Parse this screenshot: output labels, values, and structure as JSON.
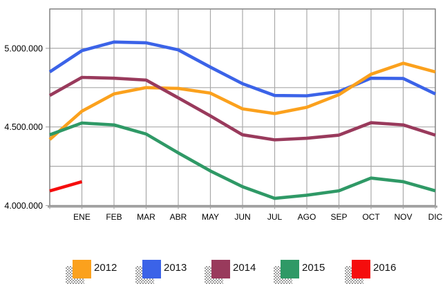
{
  "chart_data": {
    "type": "line",
    "title": "",
    "xlabel": "",
    "ylabel": "",
    "categories": [
      "",
      "ENE",
      "FEB",
      "MAR",
      "ABR",
      "MAY",
      "JUN",
      "JUL",
      "AGO",
      "SEP",
      "OCT",
      "NOV",
      "DIC"
    ],
    "layout_hints": {
      "grid": true,
      "legend_position": "bottom",
      "first_point_on_y_axis_unlabeled": true,
      "x_labels_on_gridlines": true
    },
    "y_axis": {
      "min": 4000000,
      "max": 5250000,
      "grid_interval": 250000,
      "ticks": [
        {
          "value": 4000000,
          "label": "4.000.000"
        },
        {
          "value": 4500000,
          "label": "4.500.000"
        },
        {
          "value": 5000000,
          "label": "5.000.000"
        }
      ]
    },
    "series": [
      {
        "name": "2012",
        "color": "#FBA11D",
        "values": [
          4420000,
          4600000,
          4710000,
          4750000,
          4745000,
          4715000,
          4615000,
          4585000,
          4625000,
          4705000,
          4835000,
          4905000,
          4850000
        ]
      },
      {
        "name": "2013",
        "color": "#3B63E8",
        "values": [
          4850000,
          4985000,
          5040000,
          5035000,
          4990000,
          4880000,
          4775000,
          4700000,
          4698000,
          4725000,
          4810000,
          4808000,
          4710000
        ]
      },
      {
        "name": "2014",
        "color": "#993A5C",
        "values": [
          4700000,
          4815000,
          4810000,
          4798000,
          4685000,
          4570000,
          4450000,
          4418000,
          4428000,
          4448000,
          4527000,
          4513000,
          4448000
        ]
      },
      {
        "name": "2015",
        "color": "#2F9966",
        "values": [
          4450000,
          4525000,
          4513000,
          4455000,
          4335000,
          4220000,
          4120000,
          4046000,
          4066000,
          4094000,
          4175000,
          4152000,
          4094000
        ]
      },
      {
        "name": "2016",
        "color": "#F50D0D",
        "values": [
          4093000,
          4152000
        ]
      }
    ],
    "draw_order": [
      "2013",
      "2012",
      "2014",
      "2015",
      "2016"
    ],
    "colors": {
      "gridline": "#A9A9A9",
      "frame": "#808080",
      "axis_line": "#A3A3A3",
      "background": "#FFFFFF"
    }
  }
}
